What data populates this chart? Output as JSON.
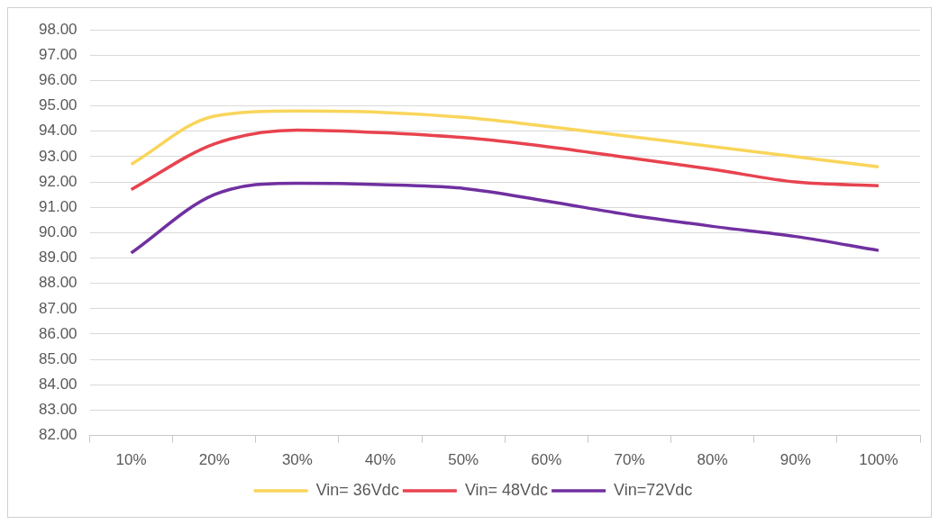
{
  "chart_data": {
    "type": "line",
    "categories": [
      "10%",
      "20%",
      "30%",
      "40%",
      "50%",
      "60%",
      "70%",
      "80%",
      "90%",
      "100%"
    ],
    "series": [
      {
        "name": "Vin= 36Vdc",
        "color": "#f9d55a",
        "values": [
          92.7,
          94.6,
          94.8,
          94.75,
          94.55,
          94.2,
          93.8,
          93.4,
          93.0,
          92.6
        ]
      },
      {
        "name": "Vin= 48Vdc",
        "color": "#e8434f",
        "values": [
          91.7,
          93.5,
          94.05,
          93.95,
          93.75,
          93.4,
          92.95,
          92.5,
          92.0,
          91.85
        ]
      },
      {
        "name": "Vin=72Vdc",
        "color": "#7030a0",
        "values": [
          89.2,
          91.5,
          91.95,
          91.9,
          91.75,
          91.25,
          90.7,
          90.25,
          89.85,
          89.3
        ]
      }
    ],
    "ylim": [
      82,
      98
    ],
    "yticks": [
      {
        "value": 82,
        "label": "82.00"
      },
      {
        "value": 83,
        "label": "83.00"
      },
      {
        "value": 84,
        "label": "84.00"
      },
      {
        "value": 85,
        "label": "85.00"
      },
      {
        "value": 86,
        "label": "86.00"
      },
      {
        "value": 87,
        "label": "87.00"
      },
      {
        "value": 88,
        "label": "88.00"
      },
      {
        "value": 89,
        "label": "89.00"
      },
      {
        "value": 90,
        "label": "90.00"
      },
      {
        "value": 91,
        "label": "91.00"
      },
      {
        "value": 92,
        "label": "92.00"
      },
      {
        "value": 93,
        "label": "93.00"
      },
      {
        "value": 94,
        "label": "94.00"
      },
      {
        "value": 95,
        "label": "95.00"
      },
      {
        "value": 96,
        "label": "96.00"
      },
      {
        "value": 97,
        "label": "97.00"
      },
      {
        "value": 98,
        "label": "98.00"
      }
    ],
    "grid": "y",
    "legend": "bottom",
    "marker": "none",
    "line_style": "solid"
  }
}
